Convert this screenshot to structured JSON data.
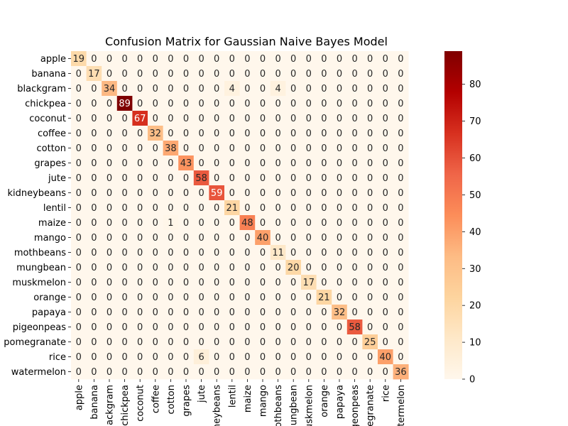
{
  "chart_data": {
    "type": "heatmap",
    "title": "Confusion Matrix for Gaussian Naive Bayes Model",
    "xlabel": "",
    "ylabel": "",
    "row_labels": [
      "apple",
      "banana",
      "blackgram",
      "chickpea",
      "coconut",
      "coffee",
      "cotton",
      "grapes",
      "jute",
      "kidneybeans",
      "lentil",
      "maize",
      "mango",
      "mothbeans",
      "mungbean",
      "muskmelon",
      "orange",
      "papaya",
      "pigeonpeas",
      "pomegranate",
      "rice",
      "watermelon"
    ],
    "col_labels": [
      "apple",
      "banana",
      "blackgram",
      "chickpea",
      "coconut",
      "coffee",
      "cotton",
      "grapes",
      "jute",
      "kidneybeans",
      "lentil",
      "maize",
      "mango",
      "mothbeans",
      "mungbean",
      "muskmelon",
      "orange",
      "papaya",
      "pigeonpeas",
      "pomegranate",
      "rice",
      "watermelon"
    ],
    "matrix": [
      [
        19,
        0,
        0,
        0,
        0,
        0,
        0,
        0,
        0,
        0,
        0,
        0,
        0,
        0,
        0,
        0,
        0,
        0,
        0,
        0,
        0,
        0
      ],
      [
        0,
        17,
        0,
        0,
        0,
        0,
        0,
        0,
        0,
        0,
        0,
        0,
        0,
        0,
        0,
        0,
        0,
        0,
        0,
        0,
        0,
        0
      ],
      [
        0,
        0,
        34,
        0,
        0,
        0,
        0,
        0,
        0,
        0,
        4,
        0,
        0,
        4,
        0,
        0,
        0,
        0,
        0,
        0,
        0,
        0
      ],
      [
        0,
        0,
        0,
        89,
        0,
        0,
        0,
        0,
        0,
        0,
        0,
        0,
        0,
        0,
        0,
        0,
        0,
        0,
        0,
        0,
        0,
        0
      ],
      [
        0,
        0,
        0,
        0,
        67,
        0,
        0,
        0,
        0,
        0,
        0,
        0,
        0,
        0,
        0,
        0,
        0,
        0,
        0,
        0,
        0,
        0
      ],
      [
        0,
        0,
        0,
        0,
        0,
        32,
        0,
        0,
        0,
        0,
        0,
        0,
        0,
        0,
        0,
        0,
        0,
        0,
        0,
        0,
        0,
        0
      ],
      [
        0,
        0,
        0,
        0,
        0,
        0,
        38,
        0,
        0,
        0,
        0,
        0,
        0,
        0,
        0,
        0,
        0,
        0,
        0,
        0,
        0,
        0
      ],
      [
        0,
        0,
        0,
        0,
        0,
        0,
        0,
        43,
        0,
        0,
        0,
        0,
        0,
        0,
        0,
        0,
        0,
        0,
        0,
        0,
        0,
        0
      ],
      [
        0,
        0,
        0,
        0,
        0,
        0,
        0,
        0,
        58,
        0,
        0,
        0,
        0,
        0,
        0,
        0,
        0,
        0,
        0,
        0,
        0,
        0
      ],
      [
        0,
        0,
        0,
        0,
        0,
        0,
        0,
        0,
        0,
        59,
        0,
        0,
        0,
        0,
        0,
        0,
        0,
        0,
        0,
        0,
        0,
        0
      ],
      [
        0,
        0,
        0,
        0,
        0,
        0,
        0,
        0,
        0,
        0,
        21,
        0,
        0,
        0,
        0,
        0,
        0,
        0,
        0,
        0,
        0,
        0
      ],
      [
        0,
        0,
        0,
        0,
        0,
        0,
        1,
        0,
        0,
        0,
        0,
        48,
        0,
        0,
        0,
        0,
        0,
        0,
        0,
        0,
        0,
        0
      ],
      [
        0,
        0,
        0,
        0,
        0,
        0,
        0,
        0,
        0,
        0,
        0,
        0,
        40,
        0,
        0,
        0,
        0,
        0,
        0,
        0,
        0,
        0
      ],
      [
        0,
        0,
        0,
        0,
        0,
        0,
        0,
        0,
        0,
        0,
        0,
        0,
        0,
        11,
        0,
        0,
        0,
        0,
        0,
        0,
        0,
        0
      ],
      [
        0,
        0,
        0,
        0,
        0,
        0,
        0,
        0,
        0,
        0,
        0,
        0,
        0,
        0,
        20,
        0,
        0,
        0,
        0,
        0,
        0,
        0
      ],
      [
        0,
        0,
        0,
        0,
        0,
        0,
        0,
        0,
        0,
        0,
        0,
        0,
        0,
        0,
        0,
        17,
        0,
        0,
        0,
        0,
        0,
        0
      ],
      [
        0,
        0,
        0,
        0,
        0,
        0,
        0,
        0,
        0,
        0,
        0,
        0,
        0,
        0,
        0,
        0,
        21,
        0,
        0,
        0,
        0,
        0
      ],
      [
        0,
        0,
        0,
        0,
        0,
        0,
        0,
        0,
        0,
        0,
        0,
        0,
        0,
        0,
        0,
        0,
        0,
        32,
        0,
        0,
        0,
        0
      ],
      [
        0,
        0,
        0,
        0,
        0,
        0,
        0,
        0,
        0,
        0,
        0,
        0,
        0,
        0,
        0,
        0,
        0,
        0,
        58,
        0,
        0,
        0
      ],
      [
        0,
        0,
        0,
        0,
        0,
        0,
        0,
        0,
        0,
        0,
        0,
        0,
        0,
        0,
        0,
        0,
        0,
        0,
        0,
        25,
        0,
        0
      ],
      [
        0,
        0,
        0,
        0,
        0,
        0,
        0,
        0,
        6,
        0,
        0,
        0,
        0,
        0,
        0,
        0,
        0,
        0,
        0,
        0,
        40,
        0
      ],
      [
        0,
        0,
        0,
        0,
        0,
        0,
        0,
        0,
        0,
        0,
        0,
        0,
        0,
        0,
        0,
        0,
        0,
        0,
        0,
        0,
        0,
        36
      ]
    ],
    "colorbar": {
      "min": 0,
      "max": 89,
      "ticks": [
        0,
        10,
        20,
        30,
        40,
        50,
        60,
        70,
        80
      ],
      "colormap": "OrRd"
    },
    "grid": false
  }
}
